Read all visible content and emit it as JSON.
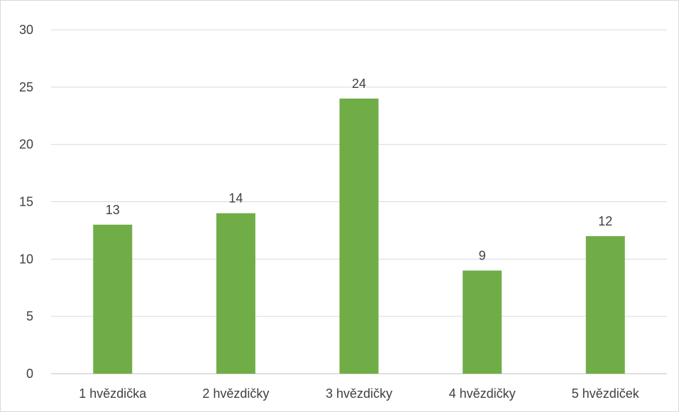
{
  "chart_data": {
    "type": "bar",
    "title": "",
    "xlabel": "",
    "ylabel": "",
    "categories": [
      "1 hvězdička",
      "2 hvězdičky",
      "3 hvězdičky",
      "4 hvězdičky",
      "5 hvězdiček"
    ],
    "values": [
      13,
      14,
      24,
      9,
      12
    ],
    "ylim": [
      0,
      30
    ],
    "yticks": [
      0,
      5,
      10,
      15,
      20,
      25,
      30
    ],
    "grid": "horizontal",
    "legend": "none",
    "data_labels": true,
    "colors": {
      "bar": "#70ad47",
      "grid": "#d9d9d9",
      "axis": "#bfbfbf",
      "text": "#404040"
    }
  }
}
